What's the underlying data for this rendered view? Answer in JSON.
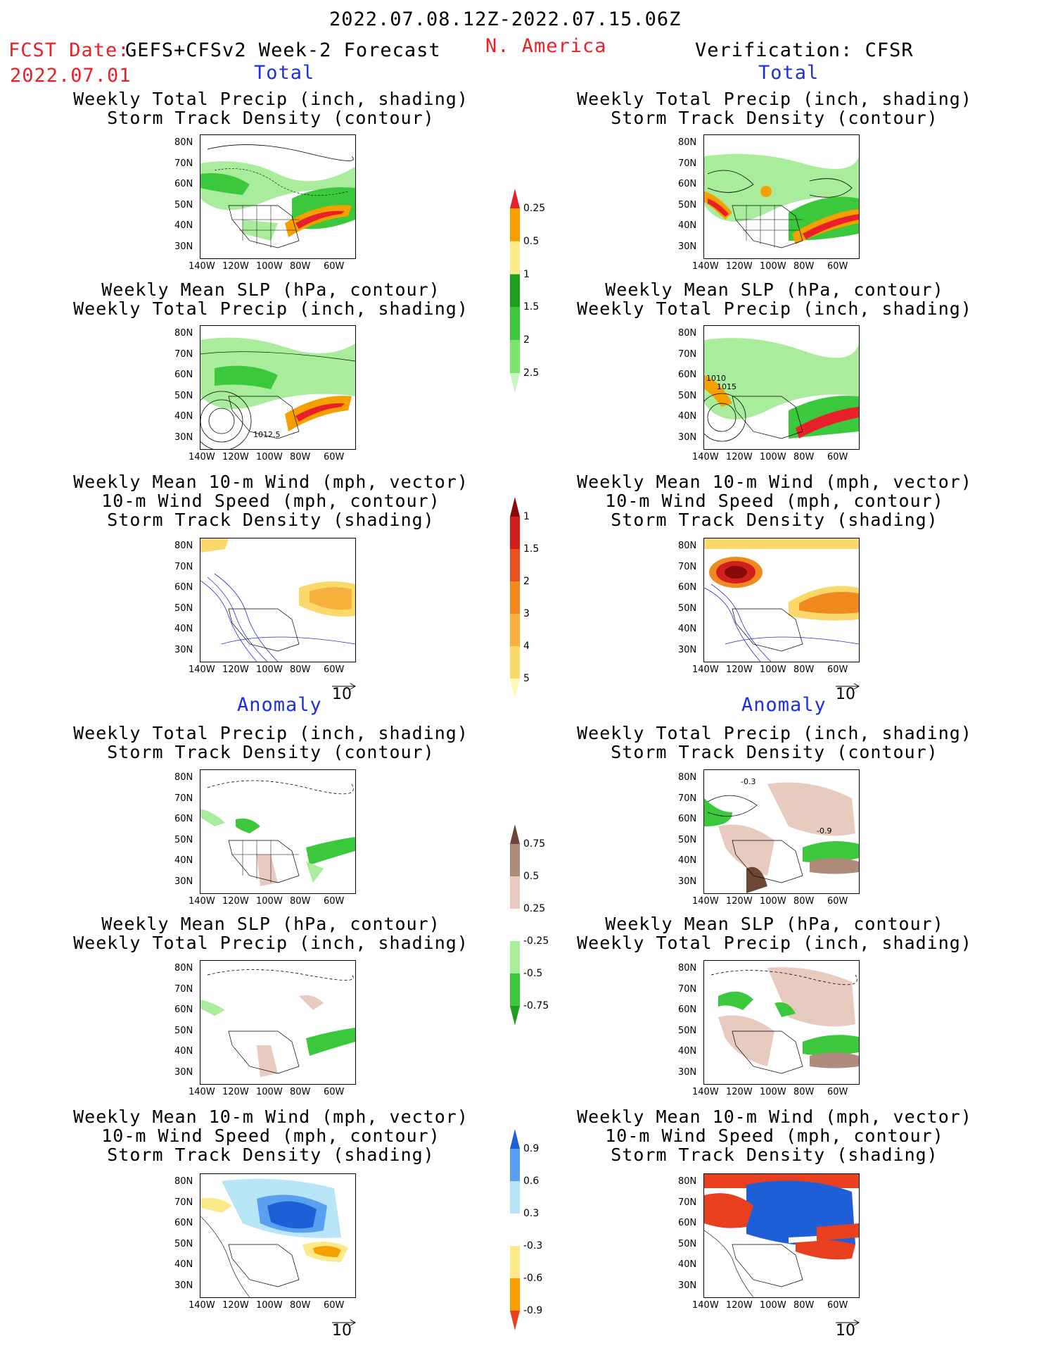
{
  "header": {
    "period": "2022.07.08.12Z-2022.07.15.06Z",
    "fcst_label": "FCST Date:",
    "model": "GEFS+CFSv2 Week-2 Forecast",
    "fcst_date": "2022.07.01",
    "region": "N. America",
    "verification": "Verification: CFSR"
  },
  "sections": {
    "total": "Total",
    "anomaly": "Anomaly"
  },
  "titles": {
    "precip_track": [
      "Weekly Total Precip (inch, shading)",
      "Storm Track Density (contour)"
    ],
    "slp_precip": [
      "Weekly Mean SLP (hPa, contour)",
      "Weekly Total Precip (inch, shading)"
    ],
    "wind_track": [
      "Weekly Mean 10-m Wind (mph, vector)",
      "10-m Wind Speed (mph, contour)",
      "Storm Track Density (shading)"
    ]
  },
  "axes": {
    "lat": [
      "80N",
      "70N",
      "60N",
      "50N",
      "40N",
      "30N"
    ],
    "lon": [
      "140W",
      "120W",
      "100W",
      "80W",
      "60W"
    ]
  },
  "vector_ref": "10",
  "map_labels": {
    "slp_fcst": "1012.5",
    "slp_ver_a": "1010",
    "slp_ver_b": "1015",
    "anom_track_a": "-0.3",
    "anom_track_b": "-0.9"
  },
  "colorbars": {
    "precip_total": {
      "labels": [
        "0.25",
        "0.5",
        "1",
        "1.5",
        "2",
        "2.5"
      ],
      "colors": [
        "#c8f5c0",
        "#7ce36e",
        "#3cc83c",
        "#1e9e1e",
        "#fbe98a",
        "#f6a000",
        "#e8202a"
      ]
    },
    "track_total": {
      "labels": [
        "1",
        "1.5",
        "2",
        "3",
        "4",
        "5"
      ],
      "colors": [
        "#fff7b8",
        "#fbd86a",
        "#f6b23c",
        "#f08a1e",
        "#e8501e",
        "#d0201e",
        "#8a0a0a"
      ]
    },
    "precip_anom": {
      "labels": [
        "0.75",
        "0.5",
        "0.25",
        "-0.25",
        "-0.5",
        "-0.75"
      ],
      "colors": [
        "#1e9e1e",
        "#3cc83c",
        "#a8ec9c",
        "#ffffff",
        "#e8cbbf",
        "#b08a7a",
        "#6e4636"
      ]
    },
    "track_anom": {
      "labels": [
        "0.9",
        "0.6",
        "0.3",
        "-0.3",
        "-0.6",
        "-0.9"
      ],
      "colors": [
        "#e8401e",
        "#f6a000",
        "#fbe98a",
        "#ffffff",
        "#b8e6f6",
        "#5aa0f0",
        "#1e5fd8"
      ]
    }
  }
}
